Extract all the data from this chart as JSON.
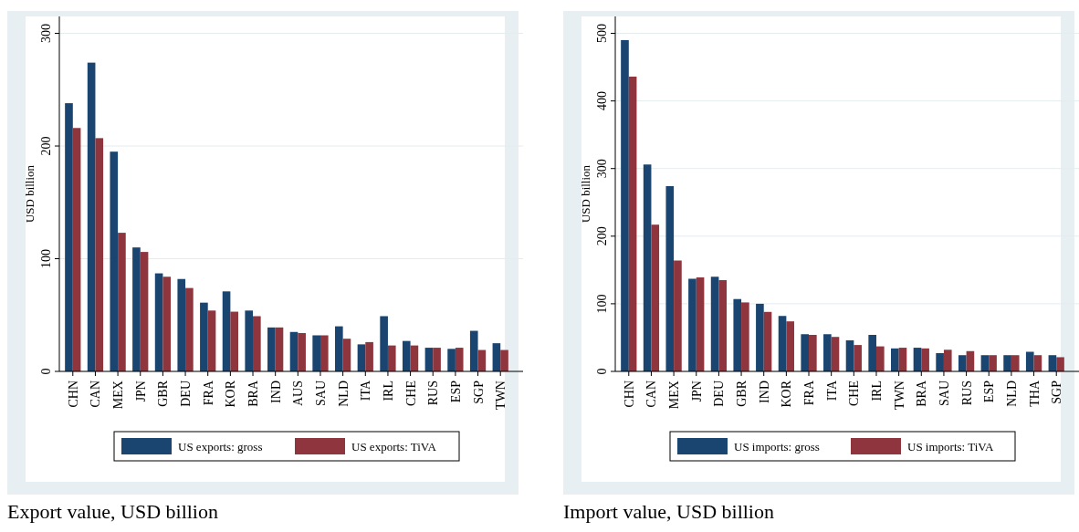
{
  "chart_data": [
    {
      "type": "bar",
      "title": "Export value, USD billion",
      "ylabel": "USD billion",
      "categories": [
        "CHN",
        "CAN",
        "MEX",
        "JPN",
        "GBR",
        "DEU",
        "FRA",
        "KOR",
        "BRA",
        "IND",
        "AUS",
        "SAU",
        "NLD",
        "ITA",
        "IRL",
        "CHE",
        "RUS",
        "ESP",
        "SGP",
        "TWN"
      ],
      "series": [
        {
          "name": "US exports: gross",
          "color": "#1a4570",
          "values": [
            238,
            274,
            195,
            110,
            87,
            82,
            61,
            71,
            54,
            39,
            35,
            32,
            40,
            24,
            49,
            27,
            21,
            20,
            36,
            25
          ]
        },
        {
          "name": "US exports: TiVA",
          "color": "#8f353d",
          "values": [
            216,
            207,
            123,
            106,
            84,
            74,
            54,
            53,
            49,
            39,
            34,
            32,
            29,
            26,
            23,
            23,
            21,
            21,
            19,
            19
          ]
        }
      ],
      "ylim": [
        0,
        315
      ],
      "yticks": [
        0,
        100,
        200,
        300
      ],
      "grid": "y",
      "legend": "bottom"
    },
    {
      "type": "bar",
      "title": "Import value, USD billion",
      "ylabel": "USD billion",
      "categories": [
        "CHN",
        "CAN",
        "MEX",
        "JPN",
        "DEU",
        "GBR",
        "IND",
        "KOR",
        "FRA",
        "ITA",
        "CHE",
        "IRL",
        "TWN",
        "BRA",
        "SAU",
        "RUS",
        "ESP",
        "NLD",
        "THA",
        "SGP"
      ],
      "series": [
        {
          "name": "US imports: gross",
          "color": "#1a4570",
          "values": [
            490,
            306,
            274,
            137,
            140,
            107,
            100,
            82,
            55,
            55,
            46,
            54,
            34,
            35,
            27,
            24,
            24,
            24,
            29,
            24
          ]
        },
        {
          "name": "US imports: TiVA",
          "color": "#8f353d",
          "values": [
            436,
            217,
            164,
            139,
            135,
            102,
            88,
            74,
            54,
            51,
            39,
            37,
            35,
            34,
            32,
            30,
            24,
            24,
            24,
            21
          ]
        }
      ],
      "ylim": [
        0,
        525
      ],
      "yticks": [
        0,
        100,
        200,
        300,
        400,
        500
      ],
      "grid": "y",
      "legend": "bottom"
    }
  ]
}
